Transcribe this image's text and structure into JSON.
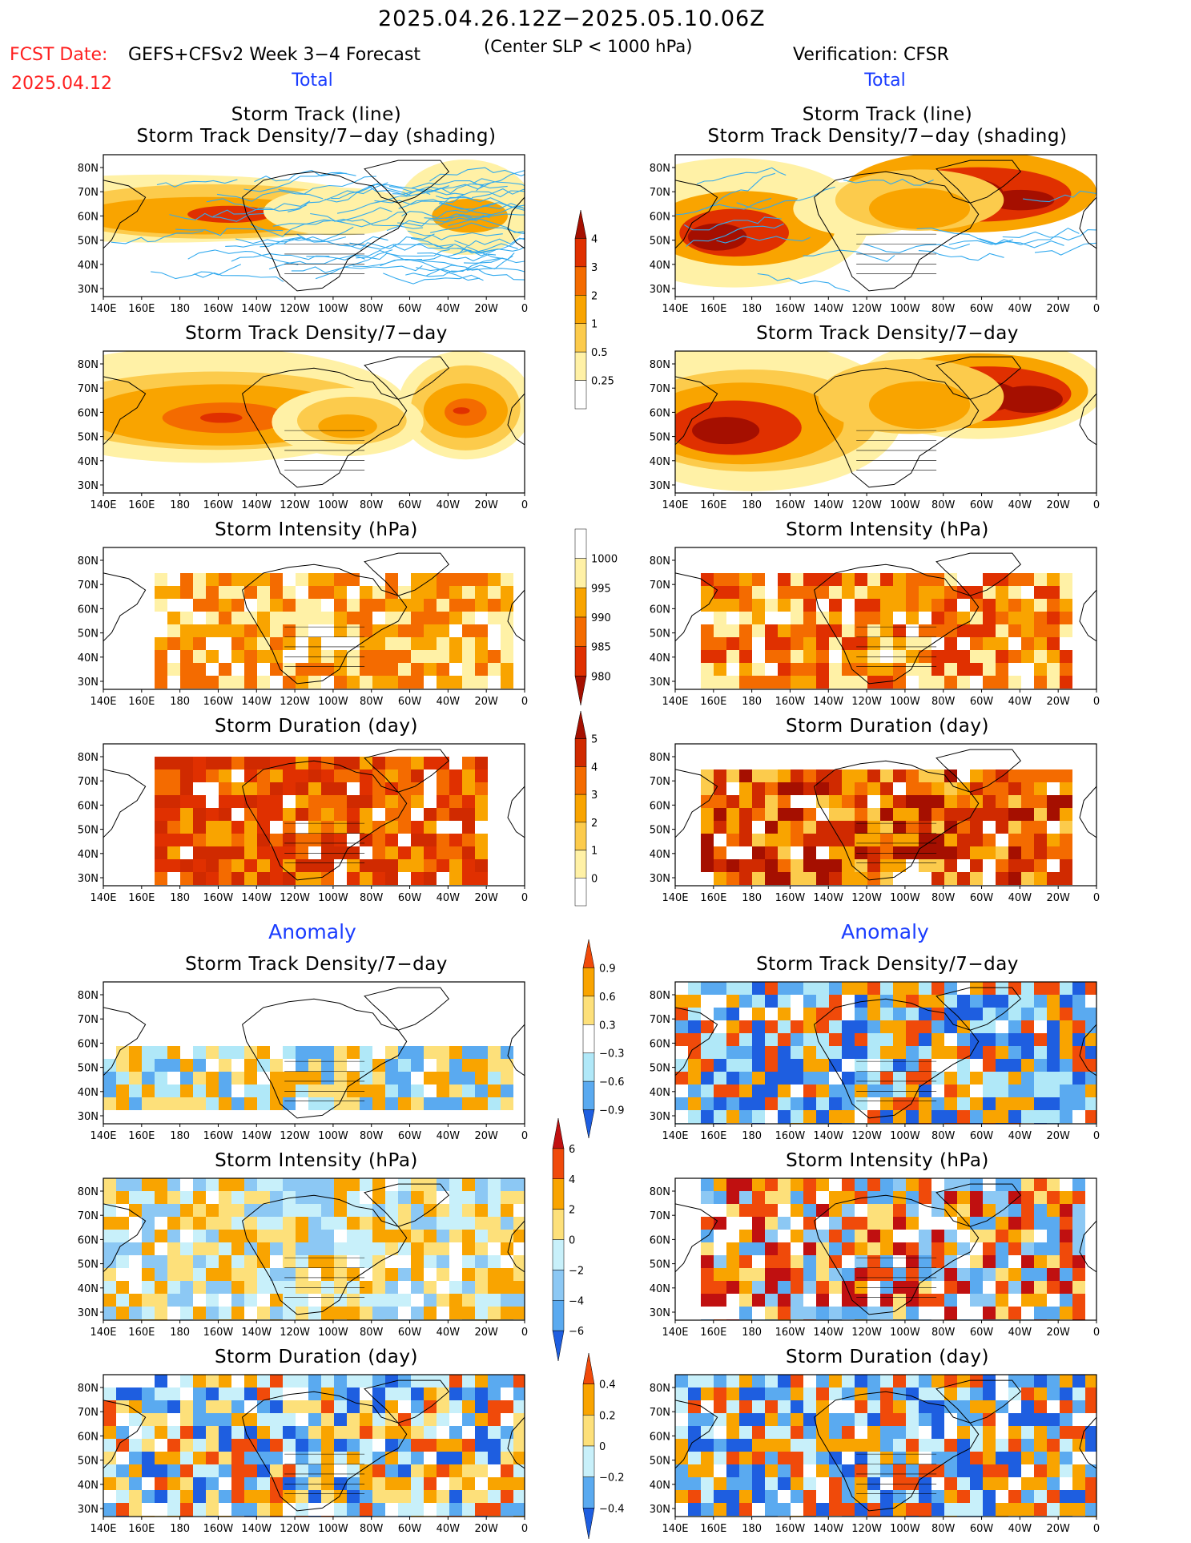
{
  "header": {
    "period": "2025.04.26.12Z−2025.05.10.06Z",
    "fcst_label": "FCST Date:",
    "fcst_date": "2025.04.12",
    "model": "GEFS+CFSv2 Week 3−4 Forecast",
    "criterion": "(Center SLP < 1000 hPa)",
    "verification": "Verification: CFSR"
  },
  "sections": {
    "total_left": "Total",
    "total_right": "Total",
    "anomaly_left": "Anomaly",
    "anomaly_right": "Anomaly"
  },
  "panel_titles": {
    "track_line": "Storm Track (line)",
    "track_shading": "Storm Track Density/7−day (shading)",
    "density": "Storm Track Density/7−day",
    "intensity": "Storm Intensity (hPa)",
    "duration": "Storm Duration (day)"
  },
  "axes": {
    "lat_labels": [
      "80N",
      "70N",
      "60N",
      "50N",
      "40N",
      "30N"
    ],
    "lon_labels": [
      "140E",
      "160E",
      "180",
      "160W",
      "140W",
      "120W",
      "100W",
      "80W",
      "60W",
      "40W",
      "20W",
      "0"
    ]
  },
  "colorbars": {
    "density_total": {
      "labels": [
        "4",
        "3",
        "2",
        "1",
        "0.5",
        "0.25"
      ],
      "colors": [
        "#a50f00",
        "#e03000",
        "#f46b00",
        "#f9a400",
        "#fccb4c",
        "#fff1a6",
        "#ffffff"
      ]
    },
    "intensity_total": {
      "labels": [
        "1000",
        "995",
        "990",
        "985",
        "980"
      ],
      "colors": [
        "#ffffff",
        "#fff1a6",
        "#f9a400",
        "#f46b00",
        "#e03000",
        "#a50f00"
      ]
    },
    "duration_total": {
      "labels": [
        "5",
        "4",
        "3",
        "2",
        "1",
        "0"
      ],
      "colors": [
        "#a50f00",
        "#d02a00",
        "#f46b00",
        "#f9a400",
        "#fccb4c",
        "#fff1a6",
        "#ffffff"
      ]
    },
    "density_anom": {
      "labels": [
        "0.9",
        "0.6",
        "0.3",
        "−0.3",
        "−0.6",
        "−0.9"
      ],
      "colors": [
        "#f04a0a",
        "#f9a400",
        "#fde07a",
        "#ffffff",
        "#b0e8f8",
        "#5aaaf0",
        "#1e5ee0"
      ]
    },
    "intensity_anom": {
      "labels": [
        "6",
        "4",
        "2",
        "0",
        "−2",
        "−4",
        "−6"
      ],
      "colors": [
        "#c01010",
        "#f04a0a",
        "#f9a400",
        "#fde07a",
        "#c8f0fa",
        "#8cc8f4",
        "#5aaaf0",
        "#1e5ee0"
      ]
    },
    "duration_anom": {
      "labels": [
        "0.4",
        "0.2",
        "0",
        "−0.2",
        "−0.4"
      ],
      "colors": [
        "#f04a0a",
        "#f9a400",
        "#fde07a",
        "#c8f0fa",
        "#5aaaf0",
        "#1e5ee0"
      ]
    }
  },
  "map_fields": {
    "left_track": {
      "track_color": "#33aaee",
      "blobs": [
        [
          "#fff1a6",
          14,
          62,
          54,
          20
        ],
        [
          "#fccb4c",
          26,
          60,
          38,
          16
        ],
        [
          "#f9a400",
          24,
          57,
          30,
          11
        ],
        [
          "#e03000",
          30,
          58,
          10,
          5
        ],
        [
          "#fff1a6",
          86,
          63,
          16,
          28
        ],
        [
          "#f9a400",
          87,
          57,
          9,
          10
        ],
        [
          "#fff1a6",
          56,
          60,
          18,
          14
        ]
      ]
    },
    "left_density": {
      "blobs": [
        [
          "#fff1a6",
          24,
          62,
          48,
          34
        ],
        [
          "#fccb4c",
          27,
          58,
          40,
          23
        ],
        [
          "#f9a400",
          28,
          55,
          32,
          18
        ],
        [
          "#f46b00",
          29,
          53,
          15,
          9
        ],
        [
          "#e03000",
          28,
          53,
          5,
          3
        ],
        [
          "#fff1a6",
          86,
          62,
          16,
          32
        ],
        [
          "#fccb4c",
          86,
          60,
          13,
          25
        ],
        [
          "#f9a400",
          86,
          58,
          10,
          16
        ],
        [
          "#f46b00",
          86,
          57,
          5,
          8
        ],
        [
          "#e03000",
          85,
          58,
          2,
          2
        ],
        [
          "#fff1a6",
          58,
          50,
          18,
          20
        ],
        [
          "#fccb4c",
          59,
          51,
          13,
          14
        ],
        [
          "#f9a400",
          58,
          47,
          7,
          7
        ]
      ]
    },
    "right_track": {
      "track_color": "#33aaee",
      "blobs": [
        [
          "#fff1a6",
          14,
          52,
          32,
          38
        ],
        [
          "#f9a400",
          16,
          48,
          22,
          22
        ],
        [
          "#e03000",
          14,
          45,
          13,
          14
        ],
        [
          "#a50f00",
          10,
          42,
          7,
          8
        ],
        [
          "#f9a400",
          70,
          74,
          30,
          24
        ],
        [
          "#e03000",
          72,
          72,
          22,
          16
        ],
        [
          "#a50f00",
          68,
          72,
          10,
          10
        ],
        [
          "#a50f00",
          82,
          68,
          8,
          6
        ],
        [
          "#fff1a6",
          44,
          62,
          16,
          16
        ],
        [
          "#fccb4c",
          58,
          68,
          20,
          18
        ],
        [
          "#f9a400",
          58,
          62,
          12,
          12
        ]
      ]
    },
    "right_density": {
      "blobs": [
        [
          "#fff1a6",
          18,
          54,
          36,
          44
        ],
        [
          "#fccb4c",
          18,
          51,
          30,
          30
        ],
        [
          "#f9a400",
          16,
          49,
          24,
          24
        ],
        [
          "#e03000",
          14,
          46,
          16,
          16
        ],
        [
          "#a50f00",
          12,
          44,
          8,
          8
        ],
        [
          "#fff1a6",
          72,
          74,
          30,
          30
        ],
        [
          "#f9a400",
          72,
          72,
          26,
          22
        ],
        [
          "#e03000",
          74,
          70,
          20,
          16
        ],
        [
          "#a50f00",
          70,
          68,
          12,
          10
        ],
        [
          "#a50f00",
          84,
          66,
          8,
          8
        ],
        [
          "#fccb4c",
          56,
          68,
          22,
          22
        ],
        [
          "#f9a400",
          58,
          62,
          12,
          14
        ]
      ]
    },
    "left_intensity": {
      "grid": 1,
      "palette": [
        "#fff1a6",
        "#f9a400",
        "#f46b00"
      ],
      "seed": 11,
      "cover": [
        0.12,
        0.95,
        0.1,
        0.9
      ]
    },
    "right_intensity": {
      "grid": 1,
      "palette": [
        "#fff1a6",
        "#f9a400",
        "#f46b00",
        "#e03000"
      ],
      "seed": 23,
      "cover": [
        0.05,
        0.92,
        0.1,
        0.9
      ]
    },
    "left_duration": {
      "grid": 1,
      "palette": [
        "#f9a400",
        "#f46b00",
        "#e03000",
        "#d02a00"
      ],
      "seed": 37,
      "cover": [
        0.1,
        0.9,
        0.08,
        0.9
      ]
    },
    "right_duration": {
      "grid": 1,
      "palette": [
        "#fccb4c",
        "#f9a400",
        "#f46b00",
        "#d02a00",
        "#a50f00"
      ],
      "seed": 41,
      "cover": [
        0.05,
        0.92,
        0.1,
        0.9
      ]
    },
    "left_density_anom": {
      "grid": 1,
      "palette": [
        "#fde07a",
        "#f9a400",
        "#b0e8f8",
        "#5aaaf0"
      ],
      "seed": 53,
      "cover": [
        0.0,
        0.95,
        0.35,
        0.75
      ]
    },
    "right_density_anom": {
      "grid": 1,
      "palette": [
        "#f04a0a",
        "#f9a400",
        "#b0e8f8",
        "#5aaaf0",
        "#1e5ee0"
      ],
      "seed": 59,
      "cover": [
        0.0,
        1.0,
        0.0,
        1.0
      ]
    },
    "left_intensity_anom": {
      "grid": 1,
      "palette": [
        "#fde07a",
        "#c8f0fa",
        "#8cc8f4",
        "#f9a400"
      ],
      "seed": 61,
      "cover": [
        0.0,
        1.0,
        0.0,
        1.0
      ]
    },
    "right_intensity_anom": {
      "grid": 1,
      "palette": [
        "#f04a0a",
        "#f9a400",
        "#fde07a",
        "#8cc8f4",
        "#c01010",
        "#5aaaf0"
      ],
      "seed": 67,
      "cover": [
        0.05,
        0.95,
        0.0,
        0.95
      ]
    },
    "left_duration_anom": {
      "grid": 1,
      "palette": [
        "#fde07a",
        "#c8f0fa",
        "#5aaaf0",
        "#f04a0a",
        "#f9a400",
        "#1e5ee0"
      ],
      "seed": 71,
      "cover": [
        0.0,
        1.0,
        0.0,
        1.0
      ]
    },
    "right_duration_anom": {
      "grid": 1,
      "palette": [
        "#1e5ee0",
        "#f04a0a",
        "#f9a400",
        "#5aaaf0",
        "#c8f0fa"
      ],
      "seed": 73,
      "cover": [
        0.0,
        1.0,
        0.0,
        1.0
      ]
    }
  }
}
